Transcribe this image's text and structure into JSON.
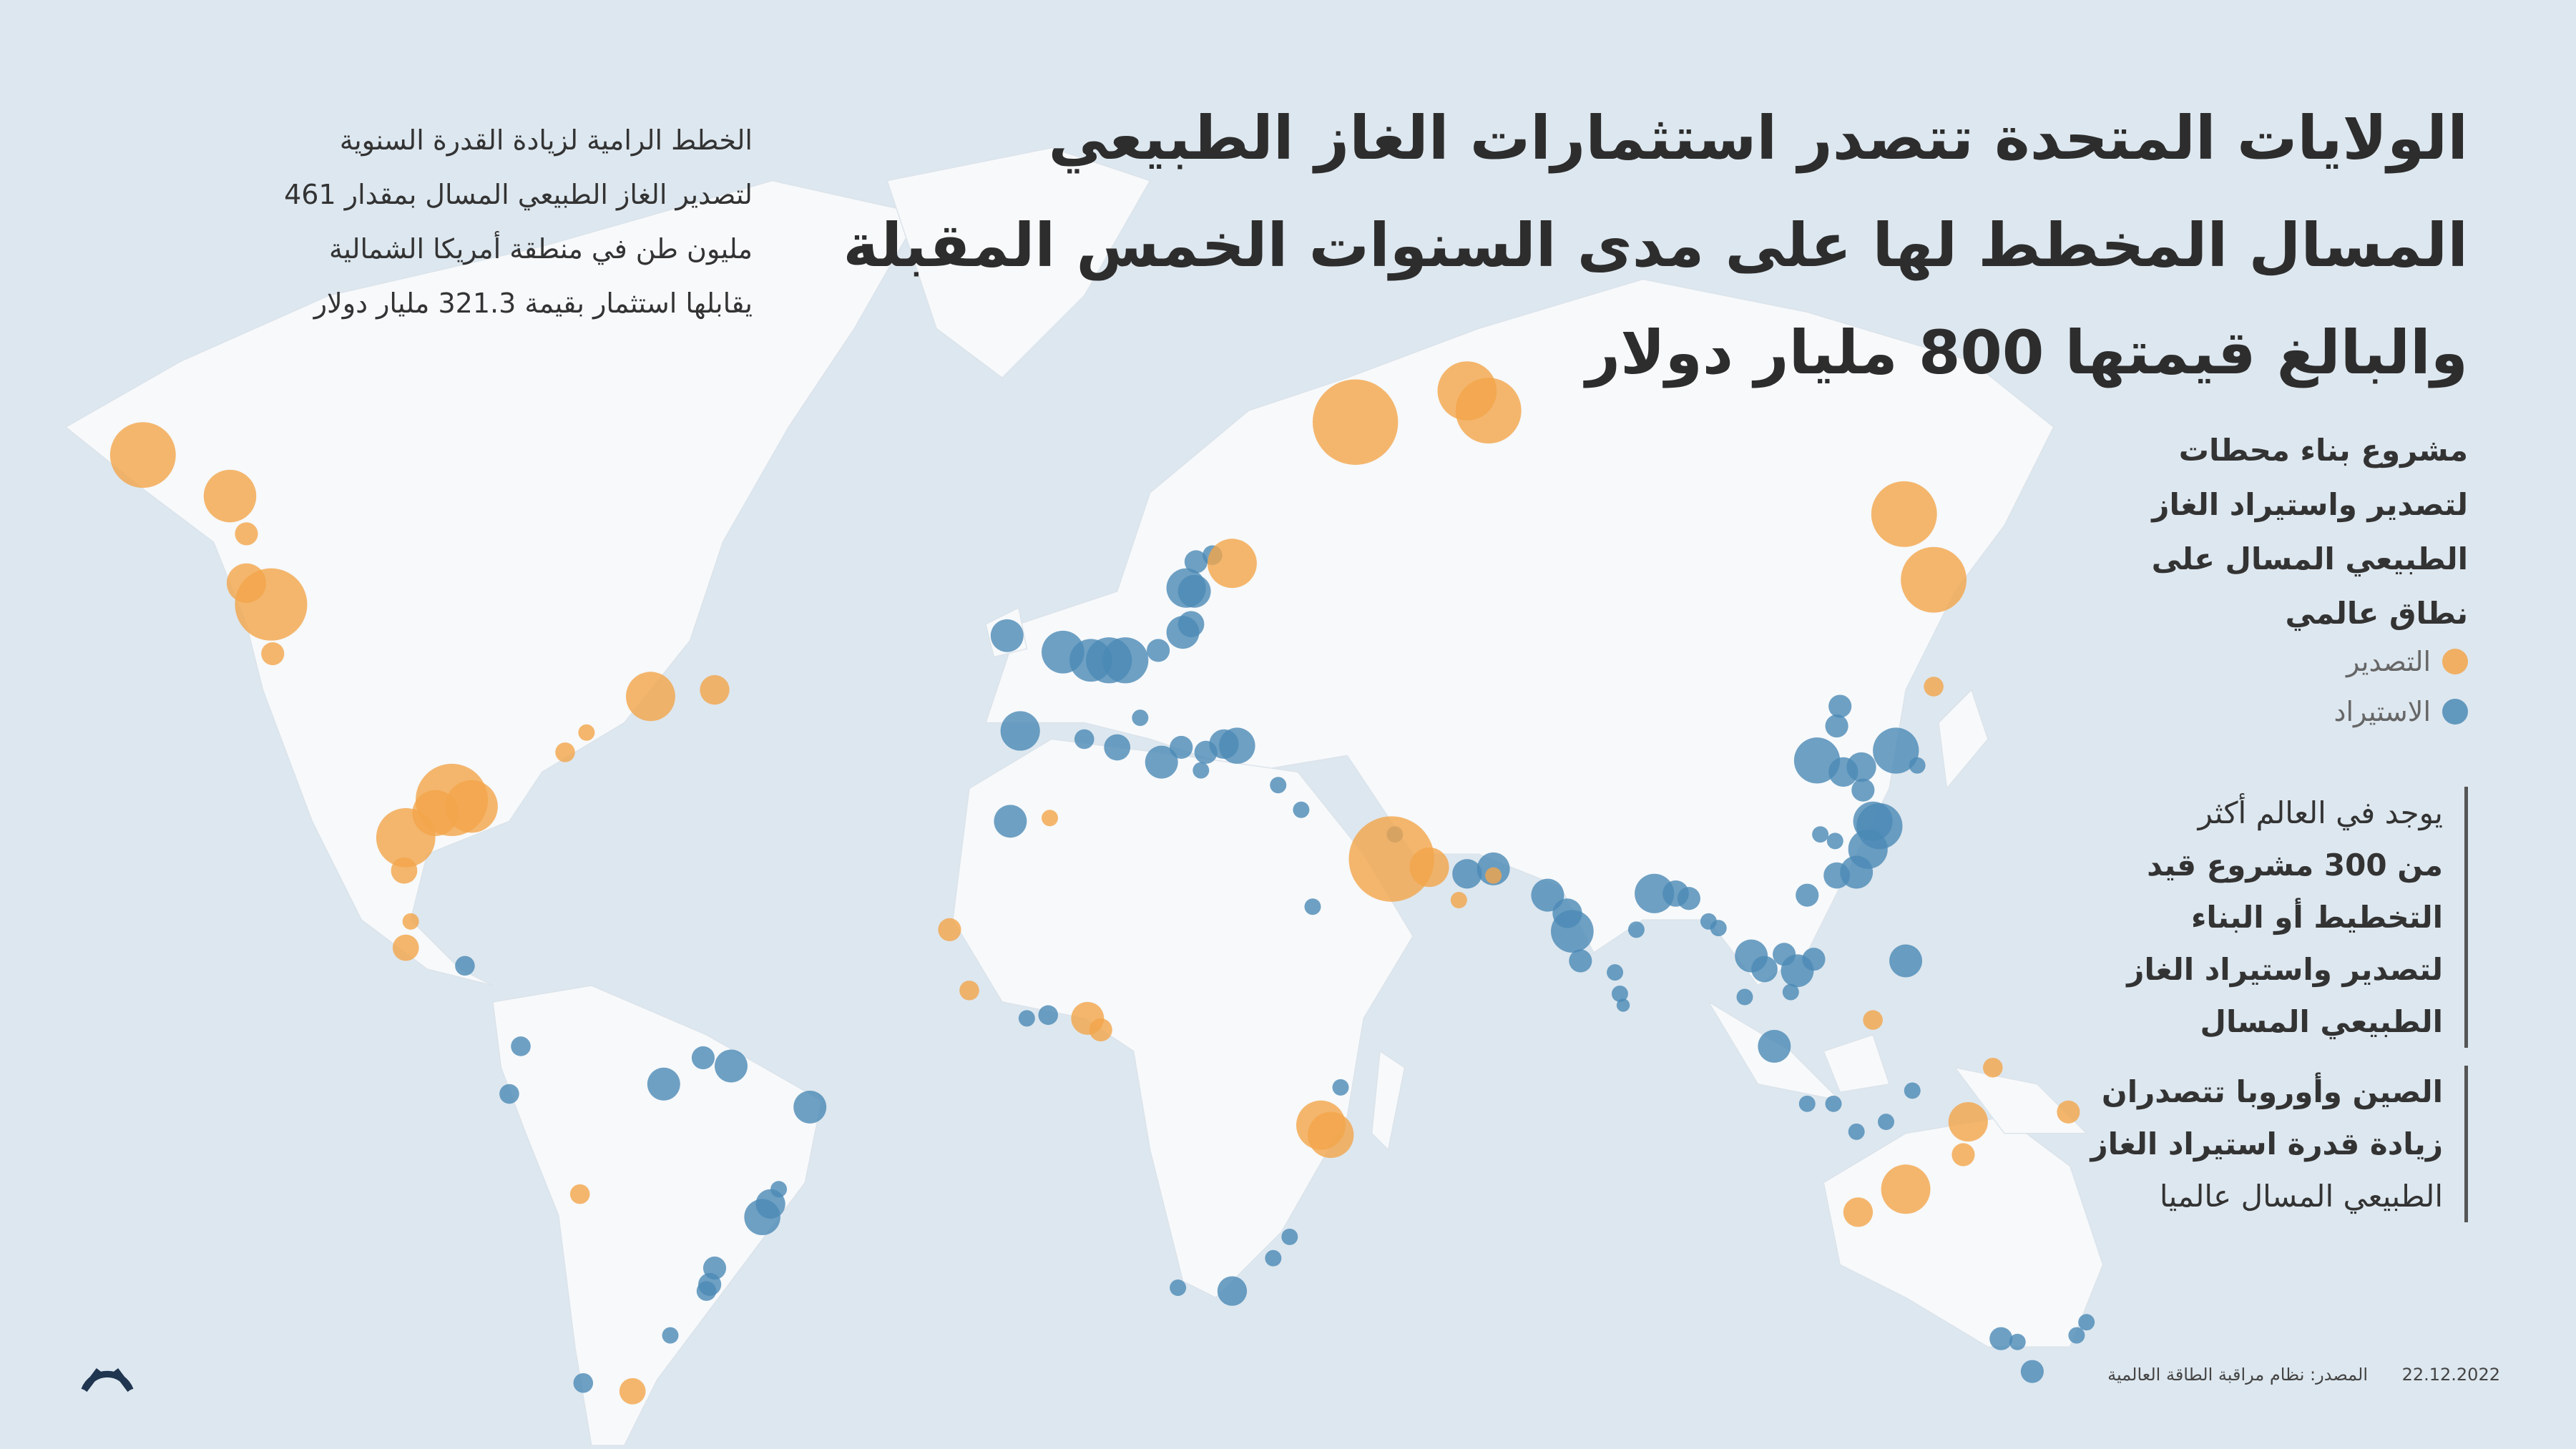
{
  "title": {
    "lines": [
      "الولايات المتحدة تتصدر استثمارات الغاز الطبيعي",
      "المسال المخطط لها على مدى السنوات الخمس المقبلة",
      "والبالغ قيمتها 800 مليار دولار"
    ]
  },
  "intro": {
    "lines": [
      "الخطط الرامية لزيادة القدرة السنوية",
      "لتصدير الغاز الطبيعي المسال بمقدار 461",
      "مليون طن في منطقة أمريكا الشمالية",
      "يقابلها استثمار بقيمة 321.3 مليار دولار"
    ]
  },
  "legend": {
    "title_lines": [
      "مشروع بناء محطات",
      "لتصدير واستيراد الغاز",
      "الطبيعي المسال على",
      "نطاق عالمي"
    ],
    "items": [
      {
        "label": "التصدير",
        "color": "#f3a54a"
      },
      {
        "label": "الاستيراد",
        "color": "#4b8ab5"
      }
    ]
  },
  "notes": [
    {
      "lines": [
        "يوجد في العالم أكثر",
        "من 300 مشروع قيد",
        "التخطيط أو البناء",
        "لتصدير واستيراد الغاز",
        "الطبيعي المسال"
      ]
    },
    {
      "lines": [
        "الصين وأوروبا تتصدران",
        "زيادة قدرة استيراد الغاز",
        "الطبيعي المسال عالميا"
      ]
    }
  ],
  "footer": {
    "source": "المصدر: نظام مراقبة الطاقة العالمية",
    "date": "22.12.2022"
  }
}
